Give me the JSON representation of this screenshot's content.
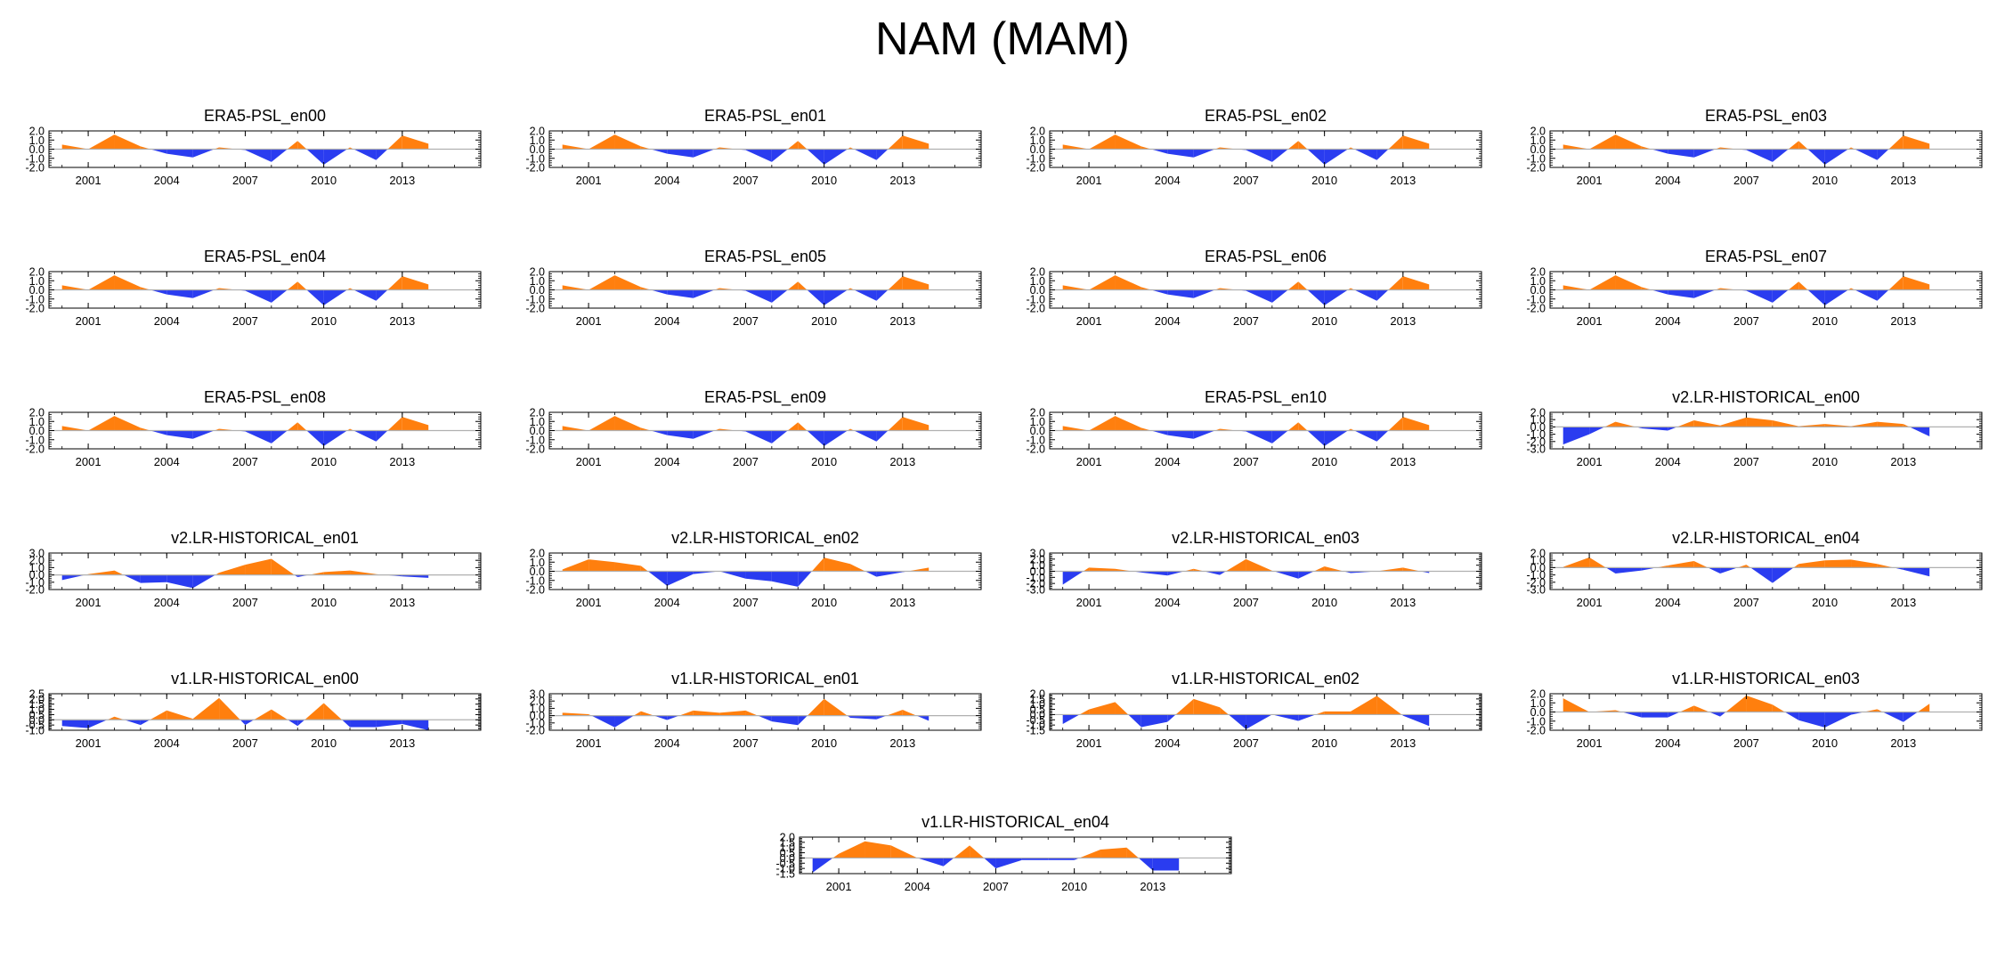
{
  "title": "NAM (MAM)",
  "colors": {
    "positive": "#ff7f0e",
    "negative": "#2a3cf0",
    "zero_line": "#b0b0b0",
    "axis": "#000000"
  },
  "chart_data": [
    {
      "type": "area",
      "title": "ERA5-PSL_en00",
      "x": [
        2000,
        2001,
        2002,
        2003,
        2004,
        2005,
        2006,
        2007,
        2008,
        2009,
        2010,
        2011,
        2012,
        2013,
        2014
      ],
      "y": [
        0.5,
        0.0,
        1.6,
        0.3,
        -0.5,
        -0.9,
        0.2,
        -0.1,
        -1.4,
        0.9,
        -1.7,
        0.2,
        -1.2,
        1.5,
        0.6
      ],
      "xlim": [
        1999.5,
        2016
      ],
      "ylim": [
        -2.0,
        2.0
      ],
      "yticks": [
        "2.0",
        "1.0",
        "0.0",
        "-1.0",
        "-2.0"
      ],
      "xticks": [
        "2001",
        "2004",
        "2007",
        "2010",
        "2013"
      ]
    },
    {
      "type": "area",
      "title": "ERA5-PSL_en01",
      "x": [
        2000,
        2001,
        2002,
        2003,
        2004,
        2005,
        2006,
        2007,
        2008,
        2009,
        2010,
        2011,
        2012,
        2013,
        2014
      ],
      "y": [
        0.5,
        0.0,
        1.6,
        0.3,
        -0.5,
        -0.9,
        0.2,
        -0.1,
        -1.4,
        0.9,
        -1.7,
        0.2,
        -1.2,
        1.5,
        0.6
      ],
      "xlim": [
        1999.5,
        2016
      ],
      "ylim": [
        -2.0,
        2.0
      ],
      "yticks": [
        "2.0",
        "1.0",
        "0.0",
        "-1.0",
        "-2.0"
      ],
      "xticks": [
        "2001",
        "2004",
        "2007",
        "2010",
        "2013"
      ]
    },
    {
      "type": "area",
      "title": "ERA5-PSL_en02",
      "x": [
        2000,
        2001,
        2002,
        2003,
        2004,
        2005,
        2006,
        2007,
        2008,
        2009,
        2010,
        2011,
        2012,
        2013,
        2014
      ],
      "y": [
        0.5,
        0.0,
        1.6,
        0.3,
        -0.5,
        -0.9,
        0.2,
        -0.1,
        -1.4,
        0.9,
        -1.7,
        0.2,
        -1.2,
        1.5,
        0.6
      ],
      "xlim": [
        1999.5,
        2016
      ],
      "ylim": [
        -2.0,
        2.0
      ],
      "yticks": [
        "2.0",
        "1.0",
        "0.0",
        "-1.0",
        "-2.0"
      ],
      "xticks": [
        "2001",
        "2004",
        "2007",
        "2010",
        "2013"
      ]
    },
    {
      "type": "area",
      "title": "ERA5-PSL_en03",
      "x": [
        2000,
        2001,
        2002,
        2003,
        2004,
        2005,
        2006,
        2007,
        2008,
        2009,
        2010,
        2011,
        2012,
        2013,
        2014
      ],
      "y": [
        0.5,
        0.0,
        1.6,
        0.3,
        -0.5,
        -0.9,
        0.2,
        -0.1,
        -1.4,
        0.9,
        -1.7,
        0.2,
        -1.2,
        1.5,
        0.6
      ],
      "xlim": [
        1999.5,
        2016
      ],
      "ylim": [
        -2.0,
        2.0
      ],
      "yticks": [
        "2.0",
        "1.0",
        "0.0",
        "-1.0",
        "-2.0"
      ],
      "xticks": [
        "2001",
        "2004",
        "2007",
        "2010",
        "2013"
      ]
    },
    {
      "type": "area",
      "title": "ERA5-PSL_en04",
      "x": [
        2000,
        2001,
        2002,
        2003,
        2004,
        2005,
        2006,
        2007,
        2008,
        2009,
        2010,
        2011,
        2012,
        2013,
        2014
      ],
      "y": [
        0.5,
        0.0,
        1.6,
        0.3,
        -0.5,
        -0.9,
        0.2,
        -0.1,
        -1.4,
        0.9,
        -1.7,
        0.2,
        -1.2,
        1.5,
        0.6
      ],
      "xlim": [
        1999.5,
        2016
      ],
      "ylim": [
        -2.0,
        2.0
      ],
      "yticks": [
        "2.0",
        "1.0",
        "0.0",
        "-1.0",
        "-2.0"
      ],
      "xticks": [
        "2001",
        "2004",
        "2007",
        "2010",
        "2013"
      ]
    },
    {
      "type": "area",
      "title": "ERA5-PSL_en05",
      "x": [
        2000,
        2001,
        2002,
        2003,
        2004,
        2005,
        2006,
        2007,
        2008,
        2009,
        2010,
        2011,
        2012,
        2013,
        2014
      ],
      "y": [
        0.5,
        0.0,
        1.6,
        0.3,
        -0.5,
        -0.9,
        0.2,
        -0.1,
        -1.4,
        0.9,
        -1.7,
        0.2,
        -1.2,
        1.5,
        0.6
      ],
      "xlim": [
        1999.5,
        2016
      ],
      "ylim": [
        -2.0,
        2.0
      ],
      "yticks": [
        "2.0",
        "1.0",
        "0.0",
        "-1.0",
        "-2.0"
      ],
      "xticks": [
        "2001",
        "2004",
        "2007",
        "2010",
        "2013"
      ]
    },
    {
      "type": "area",
      "title": "ERA5-PSL_en06",
      "x": [
        2000,
        2001,
        2002,
        2003,
        2004,
        2005,
        2006,
        2007,
        2008,
        2009,
        2010,
        2011,
        2012,
        2013,
        2014
      ],
      "y": [
        0.5,
        0.0,
        1.6,
        0.3,
        -0.5,
        -0.9,
        0.2,
        -0.1,
        -1.4,
        0.9,
        -1.7,
        0.2,
        -1.2,
        1.5,
        0.6
      ],
      "xlim": [
        1999.5,
        2016
      ],
      "ylim": [
        -2.0,
        2.0
      ],
      "yticks": [
        "2.0",
        "1.0",
        "0.0",
        "-1.0",
        "-2.0"
      ],
      "xticks": [
        "2001",
        "2004",
        "2007",
        "2010",
        "2013"
      ]
    },
    {
      "type": "area",
      "title": "ERA5-PSL_en07",
      "x": [
        2000,
        2001,
        2002,
        2003,
        2004,
        2005,
        2006,
        2007,
        2008,
        2009,
        2010,
        2011,
        2012,
        2013,
        2014
      ],
      "y": [
        0.5,
        0.0,
        1.6,
        0.3,
        -0.5,
        -0.9,
        0.2,
        -0.1,
        -1.4,
        0.9,
        -1.7,
        0.2,
        -1.2,
        1.5,
        0.6
      ],
      "xlim": [
        1999.5,
        2016
      ],
      "ylim": [
        -2.0,
        2.0
      ],
      "yticks": [
        "2.0",
        "1.0",
        "0.0",
        "-1.0",
        "-2.0"
      ],
      "xticks": [
        "2001",
        "2004",
        "2007",
        "2010",
        "2013"
      ]
    },
    {
      "type": "area",
      "title": "ERA5-PSL_en08",
      "x": [
        2000,
        2001,
        2002,
        2003,
        2004,
        2005,
        2006,
        2007,
        2008,
        2009,
        2010,
        2011,
        2012,
        2013,
        2014
      ],
      "y": [
        0.5,
        0.0,
        1.6,
        0.3,
        -0.5,
        -0.9,
        0.2,
        -0.1,
        -1.4,
        0.9,
        -1.7,
        0.2,
        -1.2,
        1.5,
        0.6
      ],
      "xlim": [
        1999.5,
        2016
      ],
      "ylim": [
        -2.0,
        2.0
      ],
      "yticks": [
        "2.0",
        "1.0",
        "0.0",
        "-1.0",
        "-2.0"
      ],
      "xticks": [
        "2001",
        "2004",
        "2007",
        "2010",
        "2013"
      ]
    },
    {
      "type": "area",
      "title": "ERA5-PSL_en09",
      "x": [
        2000,
        2001,
        2002,
        2003,
        2004,
        2005,
        2006,
        2007,
        2008,
        2009,
        2010,
        2011,
        2012,
        2013,
        2014
      ],
      "y": [
        0.5,
        0.0,
        1.6,
        0.3,
        -0.5,
        -0.9,
        0.2,
        -0.1,
        -1.4,
        0.9,
        -1.7,
        0.2,
        -1.2,
        1.5,
        0.6
      ],
      "xlim": [
        1999.5,
        2016
      ],
      "ylim": [
        -2.0,
        2.0
      ],
      "yticks": [
        "2.0",
        "1.0",
        "0.0",
        "-1.0",
        "-2.0"
      ],
      "xticks": [
        "2001",
        "2004",
        "2007",
        "2010",
        "2013"
      ]
    },
    {
      "type": "area",
      "title": "ERA5-PSL_en10",
      "x": [
        2000,
        2001,
        2002,
        2003,
        2004,
        2005,
        2006,
        2007,
        2008,
        2009,
        2010,
        2011,
        2012,
        2013,
        2014
      ],
      "y": [
        0.5,
        0.0,
        1.6,
        0.3,
        -0.5,
        -0.9,
        0.2,
        -0.1,
        -1.4,
        0.9,
        -1.7,
        0.2,
        -1.2,
        1.5,
        0.6
      ],
      "xlim": [
        1999.5,
        2016
      ],
      "ylim": [
        -2.0,
        2.0
      ],
      "yticks": [
        "2.0",
        "1.0",
        "0.0",
        "-1.0",
        "-2.0"
      ],
      "xticks": [
        "2001",
        "2004",
        "2007",
        "2010",
        "2013"
      ]
    },
    {
      "type": "area",
      "title": "v2.LR-HISTORICAL_en00",
      "x": [
        2000,
        2001,
        2002,
        2003,
        2004,
        2005,
        2006,
        2007,
        2008,
        2009,
        2010,
        2011,
        2012,
        2013,
        2014
      ],
      "y": [
        -2.4,
        -1.0,
        0.7,
        -0.2,
        -0.5,
        0.9,
        0.2,
        1.3,
        0.9,
        0.1,
        0.4,
        0.1,
        0.7,
        0.4,
        -1.3
      ],
      "xlim": [
        1999.5,
        2016
      ],
      "ylim": [
        -3.0,
        2.0
      ],
      "yticks": [
        "2.0",
        "1.0",
        "0.0",
        "-1.0",
        "-2.0",
        "-3.0"
      ],
      "xticks": [
        "2001",
        "2004",
        "2007",
        "2010",
        "2013"
      ]
    },
    {
      "type": "area",
      "title": "v2.LR-HISTORICAL_en01",
      "x": [
        2000,
        2001,
        2002,
        2003,
        2004,
        2005,
        2006,
        2007,
        2008,
        2009,
        2010,
        2011,
        2012,
        2013,
        2014
      ],
      "y": [
        -0.7,
        0.1,
        0.6,
        -1.1,
        -1.0,
        -1.8,
        0.3,
        1.4,
        2.2,
        -0.3,
        0.4,
        0.6,
        0.1,
        -0.2,
        -0.4
      ],
      "xlim": [
        1999.5,
        2016
      ],
      "ylim": [
        -2.0,
        3.0
      ],
      "yticks": [
        "3.0",
        "2.0",
        "1.0",
        "0.0",
        "-1.0",
        "-2.0"
      ],
      "xticks": [
        "2001",
        "2004",
        "2007",
        "2010",
        "2013"
      ]
    },
    {
      "type": "area",
      "title": "v2.LR-HISTORICAL_en02",
      "x": [
        2000,
        2001,
        2002,
        2003,
        2004,
        2005,
        2006,
        2007,
        2008,
        2009,
        2010,
        2011,
        2012,
        2013,
        2014
      ],
      "y": [
        0.2,
        1.3,
        1.0,
        0.6,
        -1.6,
        -0.3,
        0.0,
        -0.8,
        -1.1,
        -1.7,
        1.5,
        0.8,
        -0.6,
        -0.1,
        0.4
      ],
      "xlim": [
        1999.5,
        2016
      ],
      "ylim": [
        -2.0,
        2.0
      ],
      "yticks": [
        "2.0",
        "1.0",
        "0.0",
        "-1.0",
        "-2.0"
      ],
      "xticks": [
        "2001",
        "2004",
        "2007",
        "2010",
        "2013"
      ]
    },
    {
      "type": "area",
      "title": "v2.LR-HISTORICAL_en03",
      "x": [
        2000,
        2001,
        2002,
        2003,
        2004,
        2005,
        2006,
        2007,
        2008,
        2009,
        2010,
        2011,
        2012,
        2013,
        2014
      ],
      "y": [
        -2.2,
        0.6,
        0.4,
        -0.2,
        -0.7,
        0.4,
        -0.6,
        2.0,
        0.1,
        -1.2,
        0.8,
        -0.3,
        0.0,
        0.6,
        -0.3
      ],
      "xlim": [
        1999.5,
        2016
      ],
      "ylim": [
        -3.0,
        3.0
      ],
      "yticks": [
        "3.0",
        "2.0",
        "1.0",
        "0.0",
        "-1.0",
        "-2.0",
        "-3.0"
      ],
      "xticks": [
        "2001",
        "2004",
        "2007",
        "2010",
        "2013"
      ]
    },
    {
      "type": "area",
      "title": "v2.LR-HISTORICAL_en04",
      "x": [
        2000,
        2001,
        2002,
        2003,
        2004,
        2005,
        2006,
        2007,
        2008,
        2009,
        2010,
        2011,
        2012,
        2013,
        2014
      ],
      "y": [
        0.1,
        1.4,
        -0.8,
        -0.4,
        0.3,
        0.9,
        -0.8,
        0.4,
        -2.1,
        0.5,
        1.0,
        1.1,
        0.5,
        -0.3,
        -1.2
      ],
      "xlim": [
        1999.5,
        2016
      ],
      "ylim": [
        -3.0,
        2.0
      ],
      "yticks": [
        "2.0",
        "1.0",
        "0.0",
        "-1.0",
        "-2.0",
        "-3.0"
      ],
      "xticks": [
        "2001",
        "2004",
        "2007",
        "2010",
        "2013"
      ]
    },
    {
      "type": "area",
      "title": "v1.LR-HISTORICAL_en00",
      "x": [
        2000,
        2001,
        2002,
        2003,
        2004,
        2005,
        2006,
        2007,
        2008,
        2009,
        2010,
        2011,
        2012,
        2013,
        2014
      ],
      "y": [
        -0.6,
        -0.8,
        0.3,
        -0.5,
        0.9,
        0.1,
        2.1,
        -0.5,
        1.0,
        -0.6,
        1.6,
        -0.7,
        -0.7,
        -0.4,
        -1.0
      ],
      "xlim": [
        1999.5,
        2016
      ],
      "ylim": [
        -1.0,
        2.5
      ],
      "yticks": [
        "2.5",
        "2.0",
        "1.5",
        "1.0",
        "0.5",
        "0.0",
        "-0.5",
        "-1.0"
      ],
      "xticks": [
        "2001",
        "2004",
        "2007",
        "2010",
        "2013"
      ]
    },
    {
      "type": "area",
      "title": "v1.LR-HISTORICAL_en01",
      "x": [
        2000,
        2001,
        2002,
        2003,
        2004,
        2005,
        2006,
        2007,
        2008,
        2009,
        2010,
        2011,
        2012,
        2013,
        2014
      ],
      "y": [
        0.4,
        0.2,
        -1.6,
        0.6,
        -0.6,
        0.7,
        0.4,
        0.7,
        -0.8,
        -1.3,
        2.3,
        -0.3,
        -0.5,
        0.8,
        -0.7
      ],
      "xlim": [
        1999.5,
        2016
      ],
      "ylim": [
        -2.0,
        3.0
      ],
      "yticks": [
        "3.0",
        "2.0",
        "1.0",
        "0.0",
        "-1.0",
        "-2.0"
      ],
      "xticks": [
        "2001",
        "2004",
        "2007",
        "2010",
        "2013"
      ]
    },
    {
      "type": "area",
      "title": "v1.LR-HISTORICAL_en02",
      "x": [
        2000,
        2001,
        2002,
        2003,
        2004,
        2005,
        2006,
        2007,
        2008,
        2009,
        2010,
        2011,
        2012,
        2013,
        2014
      ],
      "y": [
        -0.9,
        0.5,
        1.2,
        -1.2,
        -0.7,
        1.5,
        0.7,
        -1.4,
        0.0,
        -0.6,
        0.3,
        0.3,
        1.8,
        -0.1,
        -1.1
      ],
      "xlim": [
        1999.5,
        2016
      ],
      "ylim": [
        -1.5,
        2.0
      ],
      "yticks": [
        "2.0",
        "1.5",
        "1.0",
        "0.5",
        "0.0",
        "-0.5",
        "-1.0",
        "-1.5"
      ],
      "xticks": [
        "2001",
        "2004",
        "2007",
        "2010",
        "2013"
      ]
    },
    {
      "type": "area",
      "title": "v1.LR-HISTORICAL_en03",
      "x": [
        2000,
        2001,
        2002,
        2003,
        2004,
        2005,
        2006,
        2007,
        2008,
        2009,
        2010,
        2011,
        2012,
        2013,
        2014
      ],
      "y": [
        1.5,
        0.0,
        0.2,
        -0.6,
        -0.6,
        0.7,
        -0.5,
        1.8,
        0.8,
        -0.9,
        -1.7,
        -0.3,
        0.3,
        -1.1,
        0.9
      ],
      "xlim": [
        1999.5,
        2016
      ],
      "ylim": [
        -2.0,
        2.0
      ],
      "yticks": [
        "2.0",
        "1.0",
        "0.0",
        "-1.0",
        "-2.0"
      ],
      "xticks": [
        "2001",
        "2004",
        "2007",
        "2010",
        "2013"
      ]
    },
    {
      "type": "area",
      "title": "v1.LR-HISTORICAL_en04",
      "x": [
        2000,
        2001,
        2002,
        2003,
        2004,
        2005,
        2006,
        2007,
        2008,
        2009,
        2010,
        2011,
        2012,
        2013,
        2014
      ],
      "y": [
        -1.4,
        0.4,
        1.6,
        1.2,
        0.0,
        -0.8,
        1.2,
        -1.0,
        -0.2,
        -0.2,
        -0.2,
        0.8,
        1.0,
        -1.2,
        -1.2
      ],
      "xlim": [
        1999.5,
        2016
      ],
      "ylim": [
        -1.5,
        2.0
      ],
      "yticks": [
        "2.0",
        "1.5",
        "1.0",
        "0.5",
        "0.0",
        "-0.5",
        "-1.0",
        "-1.5"
      ],
      "xticks": [
        "2001",
        "2004",
        "2007",
        "2010",
        "2013"
      ]
    }
  ]
}
